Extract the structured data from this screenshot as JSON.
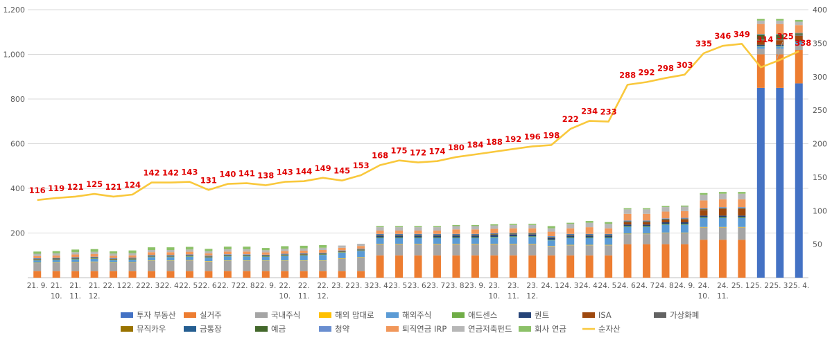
{
  "chart_data": {
    "type": "bar",
    "bar_mode": "stacked",
    "categories": [
      "21. 9.",
      "21. 10.",
      "21. 11.",
      "21. 12.",
      "22. 1.",
      "22. 2.",
      "22. 3.",
      "22. 4.",
      "22. 5.",
      "22. 6.",
      "22. 7.",
      "22. 8.",
      "22. 9.",
      "22. 10.",
      "22. 11.",
      "22. 12.",
      "23. 2.",
      "23. 3.",
      "23. 4.",
      "23. 5.",
      "23. 6.",
      "23. 7.",
      "23. 8.",
      "23. 9.",
      "23. 10.",
      "23. 11.",
      "23. 12.",
      "24. 1.",
      "24. 3.",
      "24. 4.",
      "24. 5.",
      "24. 6.",
      "24. 7.",
      "24. 8.",
      "24. 9.",
      "24. 10.",
      "24. 11.",
      "25. 1.",
      "25. 2.",
      "25. 3.",
      "25. 4."
    ],
    "ylim_left": [
      0,
      1200
    ],
    "yticks_left": [
      200,
      400,
      600,
      800,
      1000,
      1200
    ],
    "ylim_right": [
      0,
      400
    ],
    "yticks_right": [
      50,
      100,
      150,
      200,
      250,
      300,
      350,
      400
    ],
    "grid": true,
    "legend_position": "bottom",
    "colors": {
      "투자 부동산": "#4472c4",
      "실거주": "#ed7d31",
      "국내주식": "#a5a5a5",
      "해외 맘대로": "#ffc000",
      "해외주식": "#5b9bd5",
      "애드센스": "#70ad47",
      "퀀트": "#264478",
      "ISA": "#9e480e",
      "가상화폐": "#636363",
      "뮤직카우": "#997300",
      "금통장": "#255e91",
      "예금": "#43682b",
      "청약": "#698ed0",
      "퇴직연금 IRP": "#f1975a",
      "연금저축펀드": "#b7b7b7",
      "회사 연금": "#8cc168",
      "순자산": "#f9c83c",
      "label": "#e00000"
    },
    "series": [
      {
        "name": "투자 부동산",
        "values": [
          0,
          0,
          0,
          0,
          0,
          0,
          0,
          0,
          0,
          0,
          0,
          0,
          0,
          0,
          0,
          0,
          0,
          0,
          0,
          0,
          0,
          0,
          0,
          0,
          0,
          0,
          0,
          0,
          0,
          0,
          0,
          0,
          0,
          0,
          0,
          0,
          0,
          0,
          850,
          850,
          870
        ]
      },
      {
        "name": "실거주",
        "values": [
          30,
          30,
          30,
          30,
          30,
          30,
          30,
          30,
          30,
          30,
          30,
          30,
          30,
          30,
          30,
          30,
          30,
          30,
          100,
          100,
          100,
          100,
          100,
          100,
          100,
          100,
          100,
          100,
          100,
          100,
          100,
          150,
          150,
          150,
          150,
          170,
          170,
          170,
          150,
          150,
          150
        ]
      },
      {
        "name": "국내주식",
        "values": [
          35,
          37,
          38,
          40,
          36,
          38,
          45,
          45,
          47,
          42,
          45,
          45,
          45,
          45,
          45,
          45,
          55,
          60,
          50,
          50,
          50,
          50,
          50,
          50,
          50,
          50,
          50,
          40,
          45,
          45,
          45,
          45,
          45,
          50,
          50,
          55,
          55,
          55,
          25,
          25,
          25
        ]
      },
      {
        "name": "해외 맘대로",
        "values": [
          2,
          2,
          2,
          2,
          2,
          2,
          2,
          2,
          2,
          2,
          2,
          2,
          2,
          2,
          2,
          2,
          2,
          2,
          2,
          2,
          2,
          2,
          2,
          2,
          2,
          2,
          2,
          2,
          2,
          2,
          2,
          2,
          2,
          2,
          2,
          2,
          2,
          2,
          0,
          0,
          0
        ]
      },
      {
        "name": "해외주식",
        "values": [
          10,
          10,
          12,
          12,
          10,
          10,
          15,
          15,
          15,
          15,
          18,
          18,
          16,
          20,
          22,
          25,
          25,
          28,
          25,
          25,
          25,
          25,
          25,
          25,
          28,
          30,
          30,
          25,
          30,
          30,
          30,
          30,
          30,
          35,
          35,
          40,
          40,
          40,
          10,
          10,
          10
        ]
      },
      {
        "name": "애드센스",
        "values": [
          2,
          2,
          2,
          2,
          2,
          2,
          2,
          2,
          2,
          2,
          2,
          2,
          2,
          2,
          2,
          2,
          2,
          2,
          3,
          3,
          3,
          3,
          3,
          3,
          3,
          3,
          3,
          3,
          3,
          3,
          3,
          3,
          3,
          3,
          3,
          3,
          3,
          3,
          3,
          3,
          3
        ]
      },
      {
        "name": "퀀트",
        "values": [
          0,
          0,
          0,
          0,
          0,
          0,
          0,
          0,
          0,
          0,
          0,
          0,
          0,
          0,
          0,
          0,
          0,
          0,
          8,
          8,
          8,
          8,
          8,
          8,
          8,
          8,
          8,
          8,
          8,
          8,
          8,
          8,
          8,
          8,
          8,
          8,
          8,
          8,
          5,
          5,
          5
        ]
      },
      {
        "name": "ISA",
        "values": [
          0,
          0,
          0,
          0,
          0,
          0,
          0,
          0,
          0,
          0,
          0,
          0,
          0,
          0,
          0,
          0,
          0,
          0,
          0,
          0,
          0,
          0,
          0,
          0,
          0,
          0,
          0,
          0,
          0,
          0,
          0,
          10,
          10,
          10,
          12,
          25,
          30,
          30,
          20,
          20,
          20
        ]
      },
      {
        "name": "가상화폐",
        "values": [
          3,
          3,
          3,
          3,
          3,
          3,
          3,
          3,
          3,
          3,
          3,
          3,
          3,
          3,
          3,
          3,
          3,
          3,
          3,
          3,
          3,
          3,
          3,
          3,
          3,
          3,
          3,
          3,
          3,
          3,
          3,
          3,
          3,
          3,
          3,
          3,
          3,
          3,
          3,
          3,
          3
        ]
      },
      {
        "name": "뮤직카우",
        "values": [
          1,
          1,
          1,
          1,
          1,
          1,
          1,
          1,
          1,
          1,
          1,
          1,
          1,
          1,
          1,
          1,
          1,
          1,
          1,
          1,
          1,
          1,
          1,
          1,
          1,
          1,
          1,
          1,
          1,
          1,
          1,
          1,
          1,
          1,
          1,
          1,
          1,
          1,
          1,
          1,
          1
        ]
      },
      {
        "name": "금통장",
        "values": [
          2,
          2,
          2,
          2,
          2,
          2,
          2,
          2,
          2,
          2,
          2,
          2,
          2,
          2,
          2,
          2,
          2,
          2,
          2,
          2,
          2,
          2,
          2,
          2,
          2,
          2,
          2,
          2,
          2,
          2,
          2,
          2,
          2,
          2,
          2,
          2,
          2,
          2,
          2,
          2,
          2
        ]
      },
      {
        "name": "예금",
        "values": [
          0,
          0,
          0,
          0,
          0,
          0,
          0,
          0,
          0,
          0,
          0,
          0,
          0,
          0,
          0,
          0,
          0,
          0,
          0,
          0,
          0,
          0,
          0,
          0,
          0,
          0,
          0,
          0,
          0,
          0,
          0,
          0,
          0,
          0,
          0,
          0,
          0,
          0,
          20,
          20,
          5
        ]
      },
      {
        "name": "청약",
        "values": [
          2,
          2,
          2,
          2,
          2,
          2,
          2,
          2,
          2,
          2,
          2,
          2,
          2,
          2,
          2,
          2,
          2,
          2,
          2,
          2,
          2,
          2,
          2,
          2,
          2,
          2,
          2,
          2,
          2,
          2,
          2,
          2,
          2,
          2,
          2,
          2,
          2,
          2,
          2,
          2,
          2
        ]
      },
      {
        "name": "퇴직연금 IRP",
        "values": [
          10,
          10,
          12,
          12,
          10,
          10,
          12,
          12,
          12,
          10,
          12,
          12,
          10,
          12,
          12,
          12,
          12,
          12,
          15,
          15,
          15,
          15,
          20,
          20,
          20,
          20,
          20,
          20,
          25,
          30,
          25,
          30,
          30,
          30,
          30,
          35,
          35,
          35,
          45,
          45,
          35
        ]
      },
      {
        "name": "연금저축펀드",
        "values": [
          10,
          10,
          10,
          10,
          10,
          10,
          10,
          10,
          10,
          10,
          10,
          10,
          10,
          10,
          10,
          10,
          10,
          10,
          15,
          15,
          15,
          15,
          15,
          15,
          15,
          15,
          15,
          15,
          20,
          20,
          20,
          20,
          20,
          20,
          20,
          25,
          25,
          25,
          15,
          15,
          15
        ]
      },
      {
        "name": "회사 연금",
        "values": [
          10,
          10,
          12,
          12,
          10,
          12,
          12,
          12,
          12,
          10,
          12,
          12,
          10,
          12,
          12,
          12,
          0,
          0,
          5,
          5,
          5,
          5,
          5,
          5,
          5,
          5,
          5,
          10,
          5,
          8,
          8,
          5,
          5,
          5,
          5,
          8,
          8,
          8,
          8,
          8,
          8
        ]
      }
    ],
    "line": {
      "name": "순자산",
      "axis": "right",
      "values": [
        116,
        119,
        121,
        125,
        121,
        124,
        142,
        142,
        143,
        131,
        140,
        141,
        138,
        143,
        144,
        149,
        145,
        153,
        168,
        175,
        172,
        174,
        180,
        184,
        188,
        192,
        196,
        198,
        222,
        234,
        233,
        288,
        292,
        298,
        303,
        335,
        346,
        349,
        314,
        325,
        338
      ]
    }
  }
}
